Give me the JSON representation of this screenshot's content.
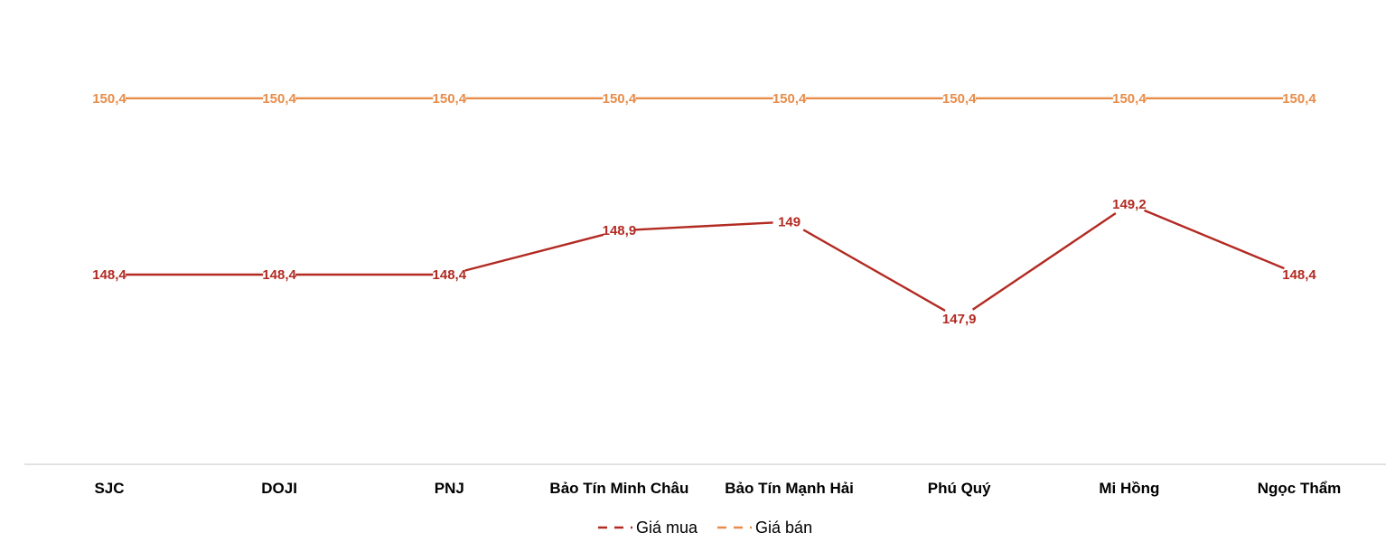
{
  "chart_data": {
    "type": "line",
    "categories": [
      "SJC",
      "DOJI",
      "PNJ",
      "Bảo Tín Minh Châu",
      "Bảo Tín Mạnh Hải",
      "Phú Quý",
      "Mi Hồng",
      "Ngọc Thẩm"
    ],
    "series": [
      {
        "name": "Giá mua",
        "color": "#b22a22",
        "values": [
          148.4,
          148.4,
          148.4,
          148.9,
          149,
          147.9,
          149.2,
          148.4
        ],
        "labels": [
          "148,4",
          "148,4",
          "148,4",
          "148,9",
          "149",
          "147,9",
          "149,2",
          "148,4"
        ]
      },
      {
        "name": "Giá bán",
        "color": "#e88c4a",
        "values": [
          150.4,
          150.4,
          150.4,
          150.4,
          150.4,
          150.4,
          150.4,
          150.4
        ],
        "labels": [
          "150,4",
          "150,4",
          "150,4",
          "150,4",
          "150,4",
          "150,4",
          "150,4",
          "150,4"
        ]
      }
    ],
    "title": "",
    "xlabel": "",
    "ylabel": "",
    "grid": false,
    "legend_position": "bottom",
    "axis_color": "#d9d9d9"
  }
}
